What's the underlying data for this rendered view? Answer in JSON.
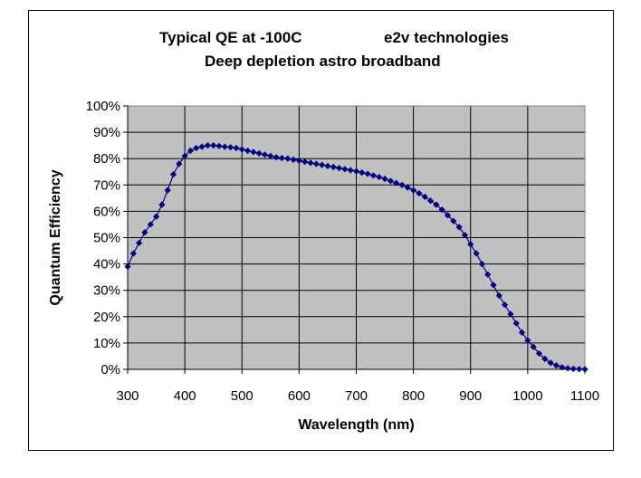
{
  "chart_data": {
    "type": "line",
    "title": "Typical QE at -100C",
    "title_right": "e2v technologies",
    "subtitle": "Deep depletion astro broadband",
    "xlabel": "Wavelength (nm)",
    "ylabel": "Quantum Efficiency",
    "xlim": [
      300,
      1100
    ],
    "ylim": [
      0,
      100
    ],
    "x_ticks": [
      300,
      400,
      500,
      600,
      700,
      800,
      900,
      1000,
      1100
    ],
    "x_tick_labels": [
      "300",
      "400",
      "500",
      "600",
      "700",
      "800",
      "900",
      "1000",
      "1100"
    ],
    "y_ticks": [
      0,
      10,
      20,
      30,
      40,
      50,
      60,
      70,
      80,
      90,
      100
    ],
    "y_tick_labels": [
      "0%",
      "10%",
      "20%",
      "30%",
      "40%",
      "50%",
      "60%",
      "70%",
      "80%",
      "90%",
      "100%"
    ],
    "grid": true,
    "legend": "none",
    "colors": {
      "plot_background": "#c0c0c0",
      "series": "#000080",
      "grid": "#000000"
    },
    "series": [
      {
        "marker": "diamond",
        "x": [
          300,
          310,
          320,
          330,
          340,
          350,
          360,
          370,
          380,
          390,
          400,
          410,
          420,
          430,
          440,
          450,
          460,
          470,
          480,
          490,
          500,
          510,
          520,
          530,
          540,
          550,
          560,
          570,
          580,
          590,
          600,
          610,
          620,
          630,
          640,
          650,
          660,
          670,
          680,
          690,
          700,
          710,
          720,
          730,
          740,
          750,
          760,
          770,
          780,
          790,
          800,
          810,
          820,
          830,
          840,
          850,
          860,
          870,
          880,
          890,
          900,
          910,
          920,
          930,
          940,
          950,
          960,
          970,
          980,
          990,
          1000,
          1010,
          1020,
          1030,
          1040,
          1050,
          1060,
          1070,
          1080,
          1090,
          1100
        ],
        "y": [
          39,
          44,
          48,
          52,
          55,
          58,
          62.5,
          68,
          74,
          78,
          81,
          83,
          84,
          84.5,
          85,
          85,
          84.8,
          84.5,
          84.3,
          84,
          83.5,
          83,
          82.5,
          82,
          81.5,
          81,
          80.5,
          80.2,
          80,
          79.6,
          79.2,
          78.8,
          78.4,
          78,
          77.6,
          77.2,
          76.8,
          76.4,
          76,
          75.6,
          75.2,
          74.7,
          74.2,
          73.6,
          73,
          72.3,
          71.5,
          70.7,
          70,
          69,
          68,
          66.8,
          65.5,
          64,
          62.5,
          60.6,
          58.5,
          56.3,
          54,
          51,
          47.5,
          44,
          40,
          36,
          32,
          28,
          24.5,
          21,
          17.5,
          14,
          11,
          8.5,
          6,
          4,
          2.5,
          1.5,
          0.8,
          0.4,
          0.2,
          0.1,
          0
        ]
      }
    ]
  }
}
